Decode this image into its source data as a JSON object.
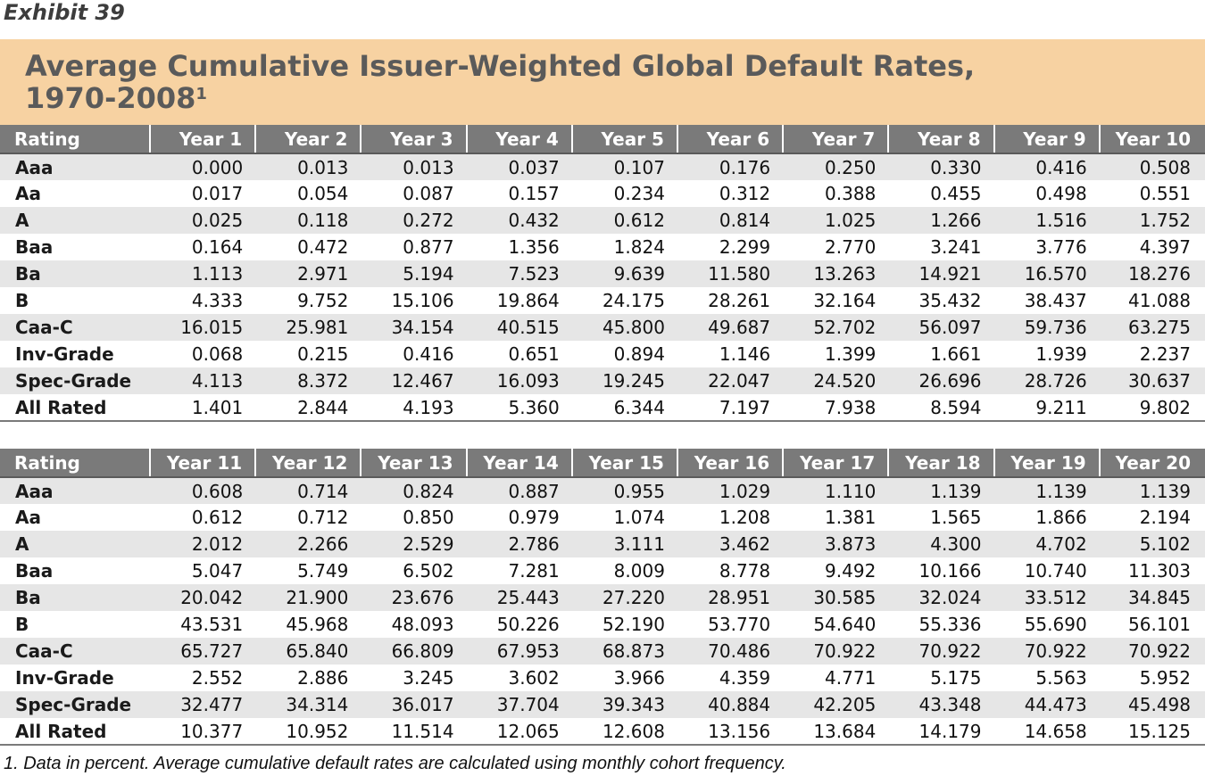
{
  "exhibit_label": "Exhibit 39",
  "title_line1": "Average Cumulative Issuer-Weighted Global Default Rates,",
  "title_line2": "1970-2008",
  "title_footnote_mark": "1",
  "table1": {
    "headers": [
      "Rating",
      "Year 1",
      "Year 2",
      "Year 3",
      "Year 4",
      "Year 5",
      "Year 6",
      "Year 7",
      "Year 8",
      "Year 9",
      "Year 10"
    ],
    "rows": [
      [
        "Aaa",
        "0.000",
        "0.013",
        "0.013",
        "0.037",
        "0.107",
        "0.176",
        "0.250",
        "0.330",
        "0.416",
        "0.508"
      ],
      [
        "Aa",
        "0.017",
        "0.054",
        "0.087",
        "0.157",
        "0.234",
        "0.312",
        "0.388",
        "0.455",
        "0.498",
        "0.551"
      ],
      [
        "A",
        "0.025",
        "0.118",
        "0.272",
        "0.432",
        "0.612",
        "0.814",
        "1.025",
        "1.266",
        "1.516",
        "1.752"
      ],
      [
        "Baa",
        "0.164",
        "0.472",
        "0.877",
        "1.356",
        "1.824",
        "2.299",
        "2.770",
        "3.241",
        "3.776",
        "4.397"
      ],
      [
        "Ba",
        "1.113",
        "2.971",
        "5.194",
        "7.523",
        "9.639",
        "11.580",
        "13.263",
        "14.921",
        "16.570",
        "18.276"
      ],
      [
        "B",
        "4.333",
        "9.752",
        "15.106",
        "19.864",
        "24.175",
        "28.261",
        "32.164",
        "35.432",
        "38.437",
        "41.088"
      ],
      [
        "Caa-C",
        "16.015",
        "25.981",
        "34.154",
        "40.515",
        "45.800",
        "49.687",
        "52.702",
        "56.097",
        "59.736",
        "63.275"
      ],
      [
        "Inv-Grade",
        "0.068",
        "0.215",
        "0.416",
        "0.651",
        "0.894",
        "1.146",
        "1.399",
        "1.661",
        "1.939",
        "2.237"
      ],
      [
        "Spec-Grade",
        "4.113",
        "8.372",
        "12.467",
        "16.093",
        "19.245",
        "22.047",
        "24.520",
        "26.696",
        "28.726",
        "30.637"
      ],
      [
        "All Rated",
        "1.401",
        "2.844",
        "4.193",
        "5.360",
        "6.344",
        "7.197",
        "7.938",
        "8.594",
        "9.211",
        "9.802"
      ]
    ]
  },
  "table2": {
    "headers": [
      "Rating",
      "Year 11",
      "Year 12",
      "Year 13",
      "Year 14",
      "Year 15",
      "Year 16",
      "Year 17",
      "Year 18",
      "Year 19",
      "Year 20"
    ],
    "rows": [
      [
        "Aaa",
        "0.608",
        "0.714",
        "0.824",
        "0.887",
        "0.955",
        "1.029",
        "1.110",
        "1.139",
        "1.139",
        "1.139"
      ],
      [
        "Aa",
        "0.612",
        "0.712",
        "0.850",
        "0.979",
        "1.074",
        "1.208",
        "1.381",
        "1.565",
        "1.866",
        "2.194"
      ],
      [
        "A",
        "2.012",
        "2.266",
        "2.529",
        "2.786",
        "3.111",
        "3.462",
        "3.873",
        "4.300",
        "4.702",
        "5.102"
      ],
      [
        "Baa",
        "5.047",
        "5.749",
        "6.502",
        "7.281",
        "8.009",
        "8.778",
        "9.492",
        "10.166",
        "10.740",
        "11.303"
      ],
      [
        "Ba",
        "20.042",
        "21.900",
        "23.676",
        "25.443",
        "27.220",
        "28.951",
        "30.585",
        "32.024",
        "33.512",
        "34.845"
      ],
      [
        "B",
        "43.531",
        "45.968",
        "48.093",
        "50.226",
        "52.190",
        "53.770",
        "54.640",
        "55.336",
        "55.690",
        "56.101"
      ],
      [
        "Caa-C",
        "65.727",
        "65.840",
        "66.809",
        "67.953",
        "68.873",
        "70.486",
        "70.922",
        "70.922",
        "70.922",
        "70.922"
      ],
      [
        "Inv-Grade",
        "2.552",
        "2.886",
        "3.245",
        "3.602",
        "3.966",
        "4.359",
        "4.771",
        "5.175",
        "5.563",
        "5.952"
      ],
      [
        "Spec-Grade",
        "32.477",
        "34.314",
        "36.017",
        "37.704",
        "39.343",
        "40.884",
        "42.205",
        "43.348",
        "44.473",
        "45.498"
      ],
      [
        "All Rated",
        "10.377",
        "10.952",
        "11.514",
        "12.065",
        "12.608",
        "13.156",
        "13.684",
        "14.179",
        "14.658",
        "15.125"
      ]
    ]
  },
  "footnote": "1. Data in percent. Average cumulative default rates are calculated using monthly cohort frequency.",
  "colors": {
    "title_band": "#f7d2a2",
    "title_text": "#5a5a5a",
    "header_band": "#7a7a7a",
    "stripe": "#e6e6e6"
  }
}
